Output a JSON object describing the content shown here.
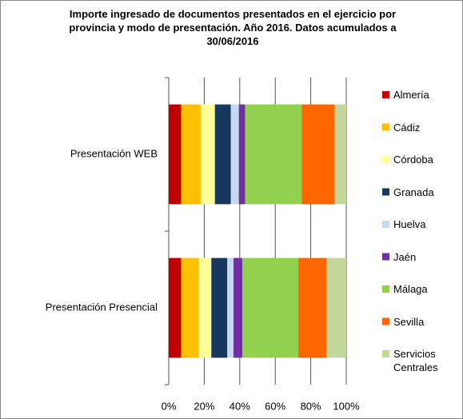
{
  "chart_data": {
    "type": "stacked-bar-horizontal",
    "title": "Importe ingresado de documentos presentados en el ejercicio por provincia y modo de presentación. Año 2016. Datos acumulados a 30/06/2016",
    "categories": [
      "Presentación WEB",
      "Presentación Presencial"
    ],
    "series": [
      {
        "name": "Almería",
        "color": "#c00000",
        "values": [
          7,
          7
        ]
      },
      {
        "name": "Cádiz",
        "color": "#ffc000",
        "values": [
          11,
          10
        ]
      },
      {
        "name": "Córdoba",
        "color": "#ffff99",
        "values": [
          8,
          7
        ]
      },
      {
        "name": "Granada",
        "color": "#17375e",
        "values": [
          9,
          9
        ]
      },
      {
        "name": "Huelva",
        "color": "#c5d9f1",
        "values": [
          4.5,
          3.5
        ]
      },
      {
        "name": "Jaén",
        "color": "#7030a0",
        "values": [
          3.5,
          5
        ]
      },
      {
        "name": "Málaga",
        "color": "#92d050",
        "values": [
          32,
          31.5
        ]
      },
      {
        "name": "Sevilla",
        "color": "#ff6600",
        "values": [
          18.5,
          16
        ]
      },
      {
        "name": "Servicios Centrales",
        "color": "#c4d79b",
        "values": [
          6.5,
          11
        ]
      }
    ],
    "xlim": [
      0,
      100
    ],
    "xticks": [
      {
        "value": 0,
        "label": "0%"
      },
      {
        "value": 20,
        "label": "20%"
      },
      {
        "value": 40,
        "label": "40%"
      },
      {
        "value": 60,
        "label": "60%"
      },
      {
        "value": 80,
        "label": "80%"
      },
      {
        "value": 100,
        "label": "100%"
      }
    ],
    "grid": true,
    "legend": "right"
  }
}
